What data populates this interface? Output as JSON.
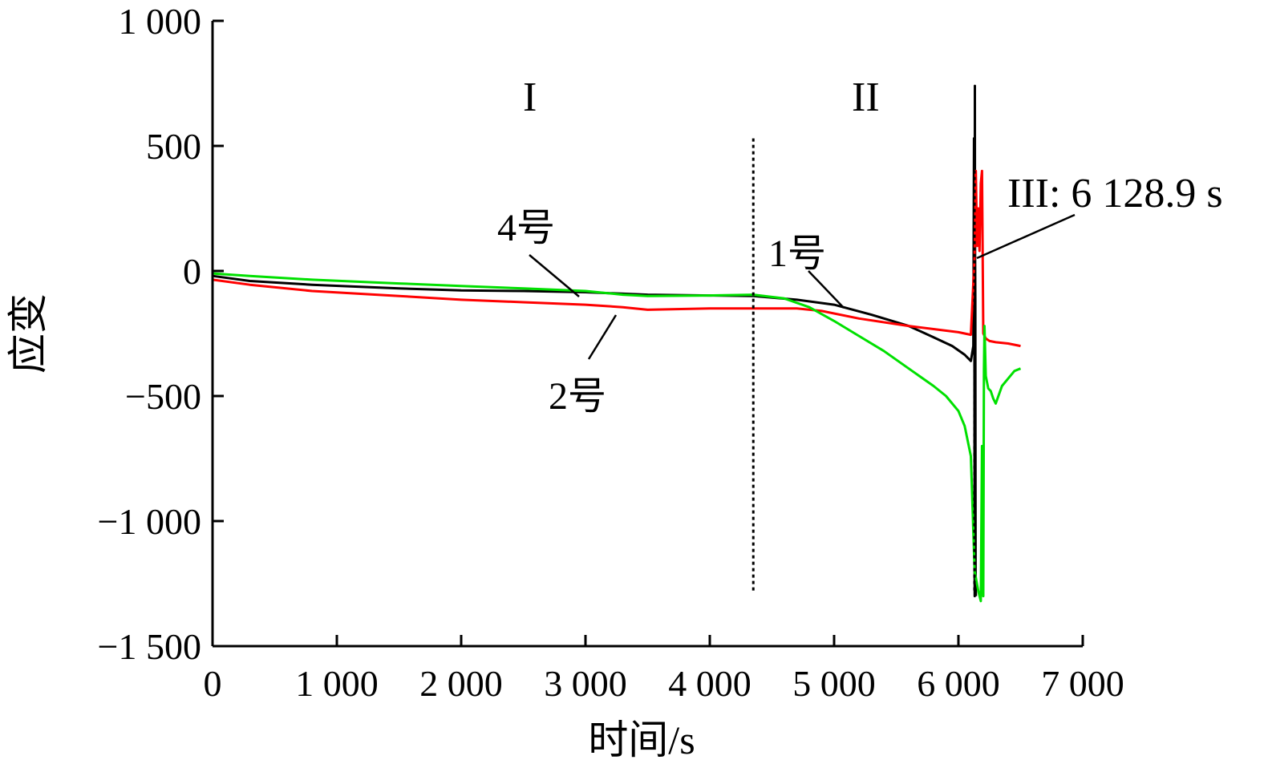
{
  "chart_data": {
    "type": "line",
    "title": "",
    "xlabel": "时间/s",
    "ylabel": "应变",
    "xlim": [
      0,
      7000
    ],
    "ylim": [
      -1500,
      1000
    ],
    "x_ticks": [
      0,
      1000,
      2000,
      3000,
      4000,
      5000,
      6000,
      7000
    ],
    "x_tick_labels": [
      "0",
      "1 000",
      "2 000",
      "3 000",
      "4 000",
      "5 000",
      "6 000",
      "7 000"
    ],
    "y_ticks": [
      1000,
      500,
      0,
      -500,
      -1000,
      -1500
    ],
    "y_tick_labels": [
      "1 000",
      "500",
      "0",
      "−500",
      "−1 000",
      "−1 500"
    ],
    "grid": false,
    "legend": "none",
    "series": [
      {
        "name": "1号",
        "color": "#000000",
        "x": [
          0,
          300,
          800,
          1500,
          2000,
          2500,
          3000,
          3500,
          4000,
          4350,
          4700,
          5000,
          5300,
          5600,
          5800,
          5950,
          6050,
          6100,
          6120,
          6125,
          6128,
          6130,
          6131,
          6132,
          6133,
          6134,
          6136,
          6138,
          6140
        ],
        "y": [
          -20,
          -40,
          -55,
          -70,
          -78,
          -80,
          -85,
          -95,
          -98,
          -100,
          -115,
          -135,
          -175,
          -220,
          -265,
          -300,
          -335,
          -360,
          -300,
          530,
          300,
          -1200,
          -1300,
          740,
          300,
          60,
          -120,
          -1200,
          -1300
        ]
      },
      {
        "name": "2号",
        "color": "#ff0000",
        "x": [
          0,
          300,
          800,
          1500,
          2000,
          2500,
          3000,
          3300,
          3500,
          4000,
          4350,
          4700,
          4900,
          5200,
          5600,
          6000,
          6100,
          6130,
          6140,
          6150,
          6160,
          6170,
          6180,
          6190,
          6200,
          6220,
          6250,
          6300,
          6400,
          6500
        ],
        "y": [
          -35,
          -55,
          -80,
          -100,
          -115,
          -125,
          -135,
          -145,
          -155,
          -150,
          -150,
          -150,
          -160,
          -190,
          -220,
          -245,
          -255,
          60,
          400,
          100,
          250,
          80,
          350,
          400,
          -250,
          -270,
          -280,
          -285,
          -290,
          -300
        ]
      },
      {
        "name": "4号",
        "color": "#00e000",
        "x": [
          0,
          300,
          800,
          1500,
          2000,
          2500,
          3000,
          3300,
          3500,
          4000,
          4350,
          4600,
          4800,
          5000,
          5200,
          5400,
          5600,
          5800,
          5900,
          6000,
          6050,
          6100,
          6130,
          6160,
          6180,
          6190,
          6200,
          6205,
          6210,
          6220,
          6240,
          6260,
          6280,
          6300,
          6350,
          6400,
          6450,
          6500
        ],
        "y": [
          -10,
          -20,
          -35,
          -50,
          -60,
          -70,
          -80,
          -95,
          -100,
          -98,
          -95,
          -110,
          -145,
          -200,
          -260,
          -320,
          -390,
          -460,
          -500,
          -560,
          -620,
          -740,
          -1200,
          -1280,
          -1320,
          -700,
          -1300,
          -400,
          -220,
          -420,
          -470,
          -480,
          -510,
          -530,
          -460,
          -430,
          -400,
          -390
        ]
      }
    ],
    "annotations": {
      "label_1": "1号",
      "label_2": "2号",
      "label_4": "4号",
      "region_1": "I",
      "region_2": "II",
      "region_3": "III: 6 128.9 s"
    },
    "region_boundaries_x": [
      4350,
      6128.9
    ]
  }
}
